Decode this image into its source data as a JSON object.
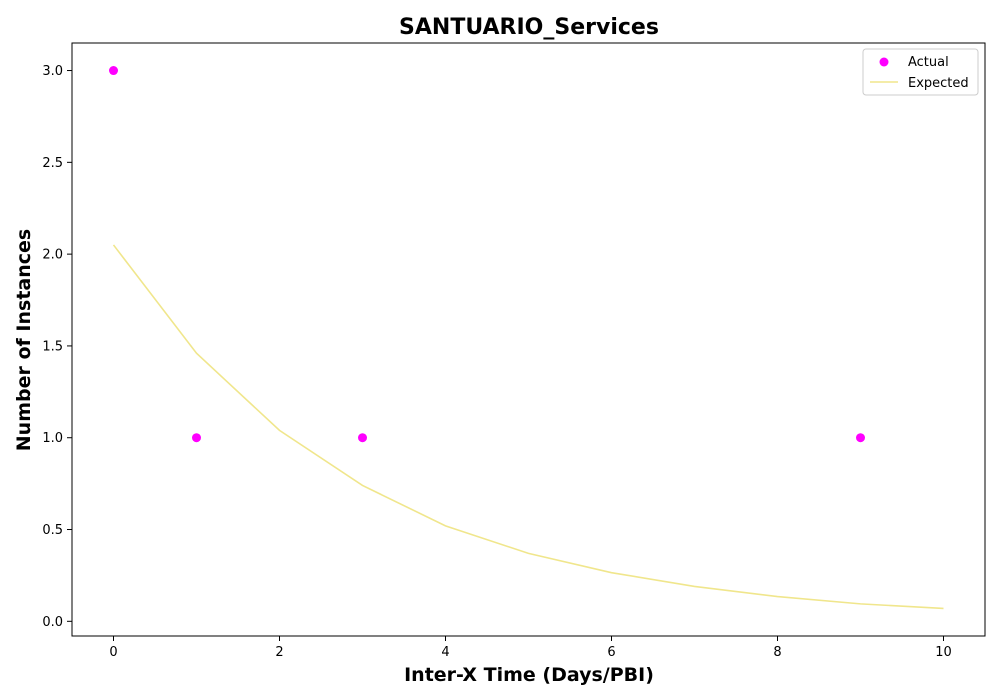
{
  "chart_data": {
    "type": "scatter",
    "title": "SANTUARIO_Services",
    "xlabel": "Inter-X Time (Days/PBI)",
    "ylabel": "Number of Instances",
    "xlim": [
      -0.5,
      10.5
    ],
    "ylim": [
      -0.08,
      3.15
    ],
    "x_ticks": [
      0,
      2,
      4,
      6,
      8,
      10
    ],
    "y_ticks": [
      0.0,
      0.5,
      1.0,
      1.5,
      2.0,
      2.5,
      3.0
    ],
    "x_tick_labels": [
      "0",
      "2",
      "4",
      "6",
      "8",
      "10"
    ],
    "y_tick_labels": [
      "0.0",
      "0.5",
      "1.0",
      "1.5",
      "2.0",
      "2.5",
      "3.0"
    ],
    "grid": false,
    "legend_position": "top-right",
    "series": [
      {
        "name": "Actual",
        "kind": "scatter",
        "color": "#ff00ff",
        "points": [
          {
            "x": 0,
            "y": 3.0
          },
          {
            "x": 1,
            "y": 1.0
          },
          {
            "x": 3,
            "y": 1.0
          },
          {
            "x": 9,
            "y": 1.0
          }
        ]
      },
      {
        "name": "Expected",
        "kind": "line",
        "color": "#f0e68c",
        "points": [
          {
            "x": 0,
            "y": 2.05
          },
          {
            "x": 1,
            "y": 1.46
          },
          {
            "x": 2,
            "y": 1.04
          },
          {
            "x": 3,
            "y": 0.74
          },
          {
            "x": 4,
            "y": 0.52
          },
          {
            "x": 5,
            "y": 0.37
          },
          {
            "x": 6,
            "y": 0.265
          },
          {
            "x": 7,
            "y": 0.19
          },
          {
            "x": 8,
            "y": 0.135
          },
          {
            "x": 9,
            "y": 0.095
          },
          {
            "x": 10,
            "y": 0.07
          }
        ]
      }
    ]
  }
}
